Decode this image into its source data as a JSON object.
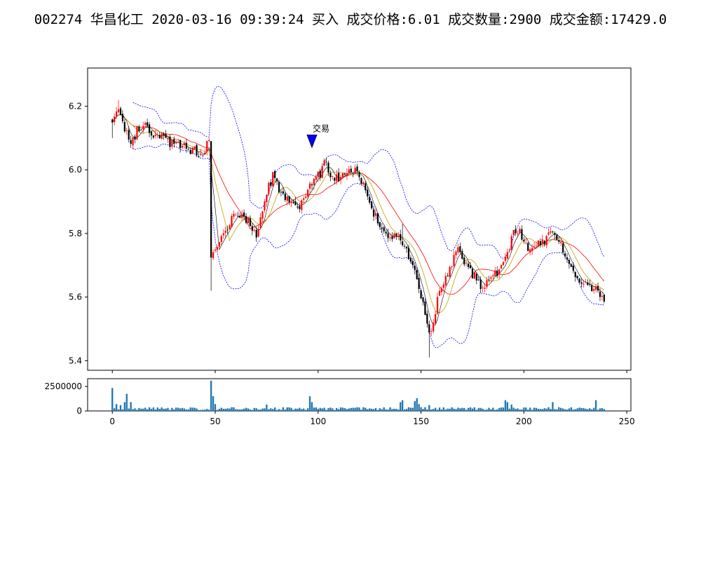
{
  "title": "002274 华昌化工 2020-03-16 09:39:24 买入 成交价格:6.01 成交数量:2900 成交金额:17429.0",
  "chart_data": [
    {
      "type": "candlestick",
      "description_note": "Intraday-style price panel: candlesticks with moving averages and Bollinger bands",
      "x_range": [
        -12,
        252
      ],
      "ylim": [
        5.37,
        6.32
      ],
      "yticks": [
        5.4,
        5.6,
        5.8,
        6.0,
        6.2
      ],
      "ytick_labels": [
        "5.4",
        "5.6",
        "5.8",
        "6.0",
        "6.2"
      ],
      "series_colors": {
        "up": "#ff0000",
        "down": "#000000",
        "ma_fast": "#000000",
        "ma_mid": "#bfa100",
        "ma_slow": "#ff0000",
        "boll": "#0000ff"
      },
      "anchors": [
        [
          0,
          6.16
        ],
        [
          3,
          6.18
        ],
        [
          6,
          6.12
        ],
        [
          9,
          6.09
        ],
        [
          12,
          6.12
        ],
        [
          15,
          6.14
        ],
        [
          18,
          6.12
        ],
        [
          22,
          6.11
        ],
        [
          26,
          6.09
        ],
        [
          30,
          6.08
        ],
        [
          35,
          6.07
        ],
        [
          40,
          6.06
        ],
        [
          44,
          6.05
        ],
        [
          46,
          6.08
        ],
        [
          47,
          6.09
        ],
        [
          48,
          5.72
        ],
        [
          50,
          5.75
        ],
        [
          53,
          5.78
        ],
        [
          56,
          5.82
        ],
        [
          59,
          5.86
        ],
        [
          62,
          5.86
        ],
        [
          66,
          5.84
        ],
        [
          70,
          5.8
        ],
        [
          72,
          5.85
        ],
        [
          75,
          5.93
        ],
        [
          78,
          5.98
        ],
        [
          81,
          5.94
        ],
        [
          84,
          5.91
        ],
        [
          87,
          5.89
        ],
        [
          90,
          5.88
        ],
        [
          93,
          5.91
        ],
        [
          96,
          5.96
        ],
        [
          99,
          5.97
        ],
        [
          101,
          5.99
        ],
        [
          103,
          6.03
        ],
        [
          106,
          5.99
        ],
        [
          110,
          5.97
        ],
        [
          114,
          5.99
        ],
        [
          118,
          6.0
        ],
        [
          122,
          5.95
        ],
        [
          126,
          5.88
        ],
        [
          130,
          5.82
        ],
        [
          134,
          5.78
        ],
        [
          138,
          5.8
        ],
        [
          142,
          5.76
        ],
        [
          146,
          5.7
        ],
        [
          150,
          5.6
        ],
        [
          152,
          5.55
        ],
        [
          154,
          5.48
        ],
        [
          156,
          5.53
        ],
        [
          159,
          5.62
        ],
        [
          162,
          5.66
        ],
        [
          165,
          5.7
        ],
        [
          168,
          5.76
        ],
        [
          171,
          5.7
        ],
        [
          174,
          5.68
        ],
        [
          177,
          5.66
        ],
        [
          180,
          5.63
        ],
        [
          183,
          5.65
        ],
        [
          186,
          5.67
        ],
        [
          189,
          5.69
        ],
        [
          192,
          5.73
        ],
        [
          195,
          5.82
        ],
        [
          198,
          5.8
        ],
        [
          201,
          5.76
        ],
        [
          204,
          5.75
        ],
        [
          208,
          5.77
        ],
        [
          212,
          5.79
        ],
        [
          215,
          5.8
        ],
        [
          218,
          5.77
        ],
        [
          221,
          5.72
        ],
        [
          225,
          5.67
        ],
        [
          229,
          5.64
        ],
        [
          233,
          5.62
        ],
        [
          236,
          5.62
        ],
        [
          239,
          5.6
        ]
      ],
      "annotation": {
        "label": "交易",
        "x": 97,
        "y": 6.09,
        "marker": "triangle-down",
        "color": "#0000ff"
      }
    },
    {
      "type": "bar",
      "description_note": "Volume panel",
      "x_range": [
        -12,
        252
      ],
      "ylim": [
        0,
        3300000
      ],
      "yticks": [
        0,
        2500000
      ],
      "ytick_labels": [
        "0",
        "2500000"
      ],
      "xticks": [
        0,
        50,
        100,
        150,
        200,
        250
      ],
      "xtick_labels": [
        "0",
        "50",
        "100",
        "150",
        "200",
        "250"
      ],
      "bar_color": "#1f77b4",
      "peaks": [
        [
          0,
          2350000
        ],
        [
          2,
          700000
        ],
        [
          4,
          600000
        ],
        [
          6,
          900000
        ],
        [
          7,
          1750000
        ],
        [
          9,
          900000
        ],
        [
          48,
          3100000
        ],
        [
          49,
          1500000
        ],
        [
          50,
          700000
        ],
        [
          75,
          650000
        ],
        [
          96,
          1500000
        ],
        [
          97,
          900000
        ],
        [
          140,
          900000
        ],
        [
          141,
          1100000
        ],
        [
          147,
          1000000
        ],
        [
          148,
          1300000
        ],
        [
          149,
          700000
        ],
        [
          154,
          600000
        ],
        [
          191,
          1100000
        ],
        [
          192,
          900000
        ],
        [
          194,
          650000
        ],
        [
          214,
          900000
        ],
        [
          235,
          1100000
        ]
      ],
      "base_level": 300000
    }
  ]
}
